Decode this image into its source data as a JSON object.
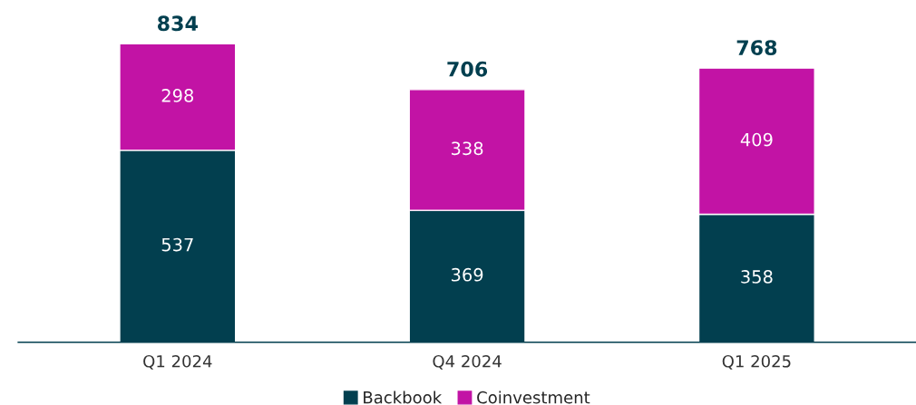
{
  "chart_data": {
    "type": "bar",
    "stacked": true,
    "categories": [
      "Q1 2024",
      "Q4 2024",
      "Q1 2025"
    ],
    "series": [
      {
        "name": "Backbook",
        "color": "#023f4f",
        "values": [
          537,
          369,
          358
        ]
      },
      {
        "name": "Coinvestment",
        "color": "#c213a5",
        "values": [
          298,
          338,
          409
        ]
      }
    ],
    "data_labels": true,
    "totals": [
      "834",
      "706",
      "768"
    ],
    "legend": "bottom",
    "grid": false
  }
}
